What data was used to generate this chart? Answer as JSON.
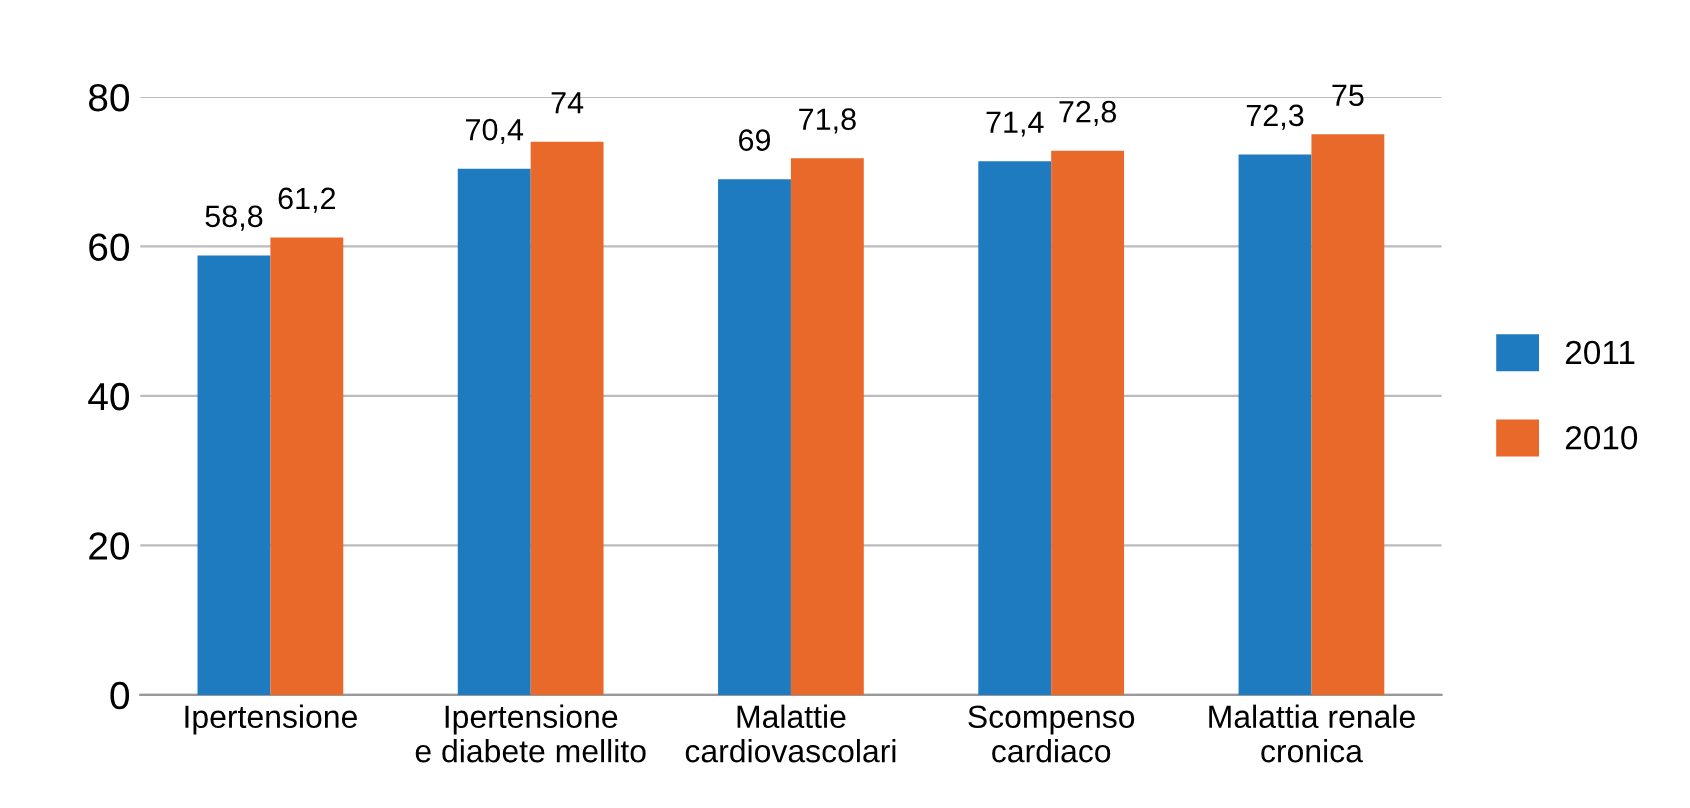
{
  "chart_data": {
    "type": "bar",
    "categories": [
      "Ipertensione",
      "Ipertensione\ne diabete mellito",
      "Malattie\ncardiovascolari",
      "Scompenso\ncardiaco",
      "Malattia renale\ncronica"
    ],
    "series": [
      {
        "name": "2011",
        "color": "#1f7bbf",
        "values": [
          58.8,
          70.4,
          69,
          71.4,
          72.3
        ],
        "value_labels": [
          "58,8",
          "70,4",
          "69",
          "71,4",
          "72,3"
        ]
      },
      {
        "name": "2010",
        "color": "#e8692a",
        "values": [
          61.2,
          74,
          71.8,
          72.8,
          75
        ],
        "value_labels": [
          "61,2",
          "74",
          "71,8",
          "72,8",
          "75"
        ]
      }
    ],
    "ylim": [
      0,
      80
    ],
    "yticks": [
      0,
      20,
      40,
      60,
      80
    ],
    "grid": "y",
    "legend": "right"
  }
}
